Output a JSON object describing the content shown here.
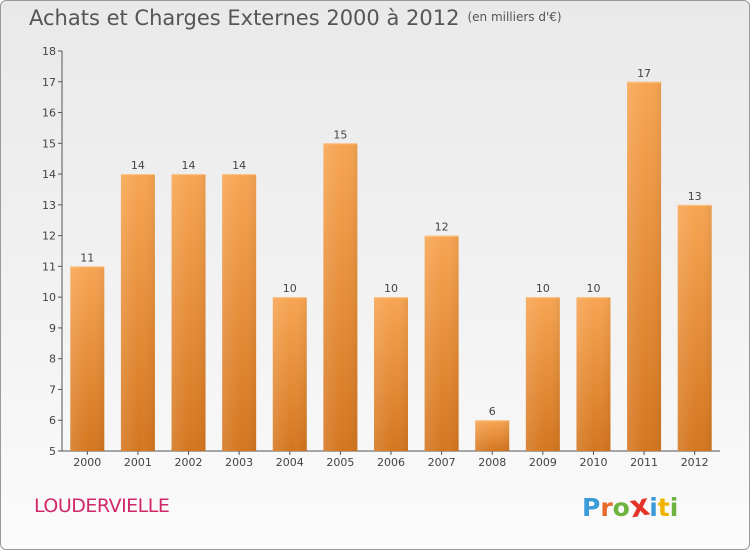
{
  "header": {
    "title": "Achats et Charges Externes 2000 à 2012",
    "subtitle": "(en milliers d'€)"
  },
  "footer": {
    "location": "LOUDERVIELLE",
    "logo": [
      "P",
      "r",
      "o",
      "x",
      "i",
      "t",
      "i"
    ]
  },
  "colors": {
    "bar_top": "#f7a552",
    "bar_bottom": "#d4761f",
    "location": "#d0286b",
    "logo": [
      "#3a9bd8",
      "#e86a2a",
      "#6cb33f",
      "#e6332a",
      "#3a9bd8",
      "#f0b400",
      "#6cb33f"
    ]
  },
  "chart_data": {
    "type": "bar",
    "categories": [
      "2000",
      "2001",
      "2002",
      "2003",
      "2004",
      "2005",
      "2006",
      "2007",
      "2008",
      "2009",
      "2010",
      "2011",
      "2012"
    ],
    "values": [
      11,
      14,
      14,
      14,
      10,
      15,
      10,
      12,
      6,
      10,
      10,
      17,
      13
    ],
    "title": "Achats et Charges Externes 2000 à 2012",
    "ylim": [
      5,
      18
    ],
    "yticks": [
      5,
      6,
      7,
      8,
      9,
      10,
      11,
      12,
      13,
      14,
      15,
      16,
      17,
      18
    ],
    "grid": false,
    "legend": "none"
  }
}
